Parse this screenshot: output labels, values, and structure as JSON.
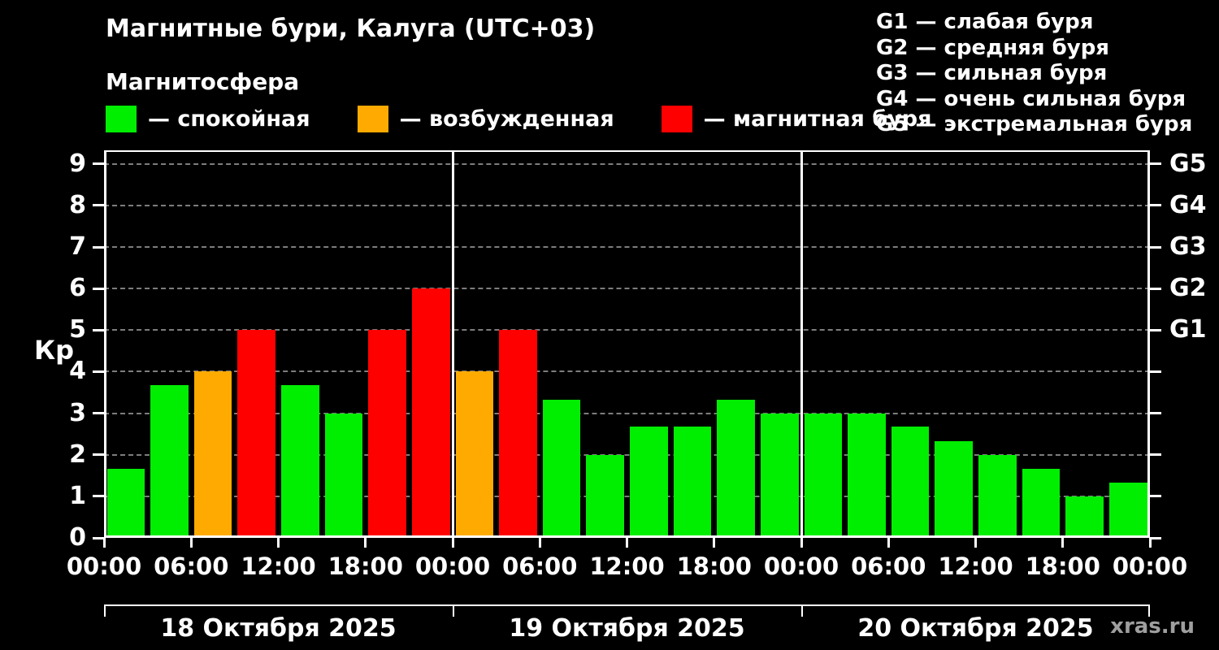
{
  "title": "Магнитные бури, Калуга (UTC+03)",
  "subtitle": "Магнитосфера",
  "legend": [
    {
      "name": "quiet",
      "label": "— спокойная",
      "color": "#00ee00"
    },
    {
      "name": "excited",
      "label": "— возбужденная",
      "color": "#ffaa00"
    },
    {
      "name": "storm",
      "label": "— магнитная буря",
      "color": "#ff0000"
    }
  ],
  "g_scale_legend": [
    "G1 — слабая буря",
    "G2 — средняя буря",
    "G3 — сильная буря",
    "G4 — очень сильная буря",
    "G5 — экстремальная буря"
  ],
  "watermark": "xras.ru",
  "chart_data": {
    "type": "bar",
    "title": "Магнитные бури, Калуга (UTC+03)",
    "ylabel": "Кр",
    "ylim": [
      0,
      9.33
    ],
    "yticks": [
      0,
      1,
      2,
      3,
      4,
      5,
      6,
      7,
      8,
      9
    ],
    "grid": "horizontal-dashed",
    "bar_interval_hours": 3,
    "x_hours_total": 72,
    "values": [
      1.67,
      3.67,
      4,
      5,
      3.67,
      3,
      5,
      6,
      4,
      5,
      3.33,
      2,
      2.67,
      2.67,
      3.33,
      3,
      3,
      3,
      2.67,
      2.33,
      2,
      1.67,
      1,
      1.33
    ],
    "color_rule": {
      "quiet_below": 4,
      "storm_from": 5
    },
    "colors": {
      "quiet": "#00ee00",
      "excited": "#ffaa00",
      "storm": "#ff0000"
    },
    "xticks": [
      {
        "hour": 0,
        "label": "00:00"
      },
      {
        "hour": 6,
        "label": "06:00"
      },
      {
        "hour": 12,
        "label": "12:00"
      },
      {
        "hour": 18,
        "label": "18:00"
      },
      {
        "hour": 24,
        "label": "00:00"
      },
      {
        "hour": 30,
        "label": "06:00"
      },
      {
        "hour": 36,
        "label": "12:00"
      },
      {
        "hour": 42,
        "label": "18:00"
      },
      {
        "hour": 48,
        "label": "00:00"
      },
      {
        "hour": 54,
        "label": "06:00"
      },
      {
        "hour": 60,
        "label": "12:00"
      },
      {
        "hour": 66,
        "label": "18:00"
      },
      {
        "hour": 72,
        "label": "00:00"
      }
    ],
    "right_g_labels": [
      {
        "value": 5,
        "label": "G1"
      },
      {
        "value": 6,
        "label": "G2"
      },
      {
        "value": 7,
        "label": "G3"
      },
      {
        "value": 8,
        "label": "G4"
      },
      {
        "value": 9,
        "label": "G5"
      }
    ],
    "days": [
      {
        "label": "18 Октября 2025",
        "start_hour": 0,
        "end_hour": 24
      },
      {
        "label": "19 Октября 2025",
        "start_hour": 24,
        "end_hour": 48
      },
      {
        "label": "20 Октября 2025",
        "start_hour": 48,
        "end_hour": 72
      }
    ]
  }
}
